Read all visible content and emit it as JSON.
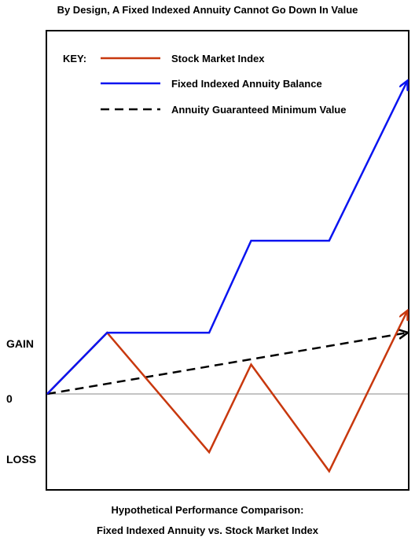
{
  "title": "By Design, A Fixed Indexed Annuity Cannot Go Down In Value",
  "caption": {
    "line1": "Hypothetical Performance Comparison:",
    "line2": "Fixed Indexed Annuity vs. Stock Market Index"
  },
  "chart_data": {
    "type": "line",
    "y_tick_labels": [
      "GAIN",
      "0",
      "LOSS"
    ],
    "legend": {
      "key_label": "KEY:",
      "placement": "top-left"
    },
    "x": [
      0,
      1,
      2,
      3,
      4,
      5,
      6
    ],
    "xlim": [
      0,
      6
    ],
    "ylim": [
      -1.5,
      5.4
    ],
    "grid": false,
    "baseline": 0,
    "series": [
      {
        "name": "Stock Market Index",
        "color": "#c8380e",
        "style": "solid",
        "x": [
          0,
          1,
          2.7,
          3.4,
          4.7,
          6
        ],
        "values": [
          0,
          1.0,
          -0.95,
          0.48,
          -1.26,
          1.35
        ]
      },
      {
        "name": "Fixed Indexed Annuity Balance",
        "color": "#0a14f0",
        "style": "solid",
        "x": [
          0,
          1,
          2.7,
          3.4,
          4.7,
          6
        ],
        "values": [
          0,
          1.0,
          1.0,
          2.5,
          2.5,
          5.1
        ]
      },
      {
        "name": "Annuity Guaranteed Minimum Value",
        "color": "#000000",
        "style": "dashed",
        "x": [
          0,
          6
        ],
        "values": [
          0,
          1.0
        ]
      }
    ]
  }
}
